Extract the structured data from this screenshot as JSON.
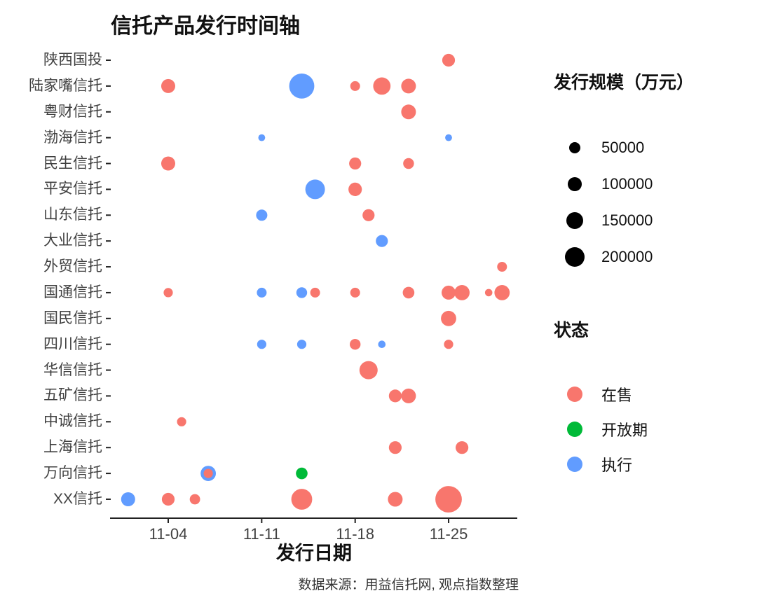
{
  "chart_data": {
    "type": "scatter",
    "title": "信托产品发行时间轴",
    "xlabel": "发行日期",
    "ylabel": "",
    "caption": "数据来源：用益信托网, 观点指数整理",
    "grid": false,
    "legend_position": "right",
    "x_ticks": [
      "11-04",
      "11-11",
      "11-18",
      "11-25"
    ],
    "x_range": [
      "11-01",
      "11-30"
    ],
    "companies": [
      "陕西国投",
      "陆家嘴信托",
      "粤财信托",
      "渤海信托",
      "民生信托",
      "平安信托",
      "山东信托",
      "大业信托",
      "外贸信托",
      "国通信托",
      "国民信托",
      "四川信托",
      "华信信托",
      "五矿信托",
      "中诚信托",
      "上海信托",
      "万向信托",
      "XX信托"
    ],
    "size_legend": {
      "title": "发行规模（万元）",
      "breaks": [
        50000,
        100000,
        150000,
        200000
      ],
      "dot_color": "#000000"
    },
    "status_legend": {
      "title": "状态",
      "items": [
        {
          "label": "在售",
          "color": "#F8766D"
        },
        {
          "label": "开放期",
          "color": "#00BA38"
        },
        {
          "label": "执行",
          "color": "#619CFF"
        }
      ]
    },
    "points": [
      {
        "company": "陕西国投",
        "date": "11-25",
        "value": 70000,
        "status": "在售"
      },
      {
        "company": "陆家嘴信托",
        "date": "11-04",
        "value": 90000,
        "status": "在售"
      },
      {
        "company": "陆家嘴信托",
        "date": "11-14",
        "value": 350000,
        "status": "执行"
      },
      {
        "company": "陆家嘴信托",
        "date": "11-18",
        "value": 35000,
        "status": "在售"
      },
      {
        "company": "陆家嘴信托",
        "date": "11-20",
        "value": 150000,
        "status": "在售"
      },
      {
        "company": "陆家嘴信托",
        "date": "11-22",
        "value": 100000,
        "status": "在售"
      },
      {
        "company": "粤财信托",
        "date": "11-22",
        "value": 100000,
        "status": "在售"
      },
      {
        "company": "渤海信托",
        "date": "11-11",
        "value": 12000,
        "status": "执行"
      },
      {
        "company": "渤海信托",
        "date": "11-25",
        "value": 12000,
        "status": "执行"
      },
      {
        "company": "民生信托",
        "date": "11-04",
        "value": 90000,
        "status": "在售"
      },
      {
        "company": "民生信托",
        "date": "11-18",
        "value": 60000,
        "status": "在售"
      },
      {
        "company": "民生信托",
        "date": "11-22",
        "value": 45000,
        "status": "在售"
      },
      {
        "company": "平安信托",
        "date": "11-15",
        "value": 200000,
        "status": "执行"
      },
      {
        "company": "平安信托",
        "date": "11-18",
        "value": 80000,
        "status": "在售"
      },
      {
        "company": "山东信托",
        "date": "11-11",
        "value": 50000,
        "status": "执行"
      },
      {
        "company": "山东信托",
        "date": "11-19",
        "value": 60000,
        "status": "在售"
      },
      {
        "company": "大业信托",
        "date": "11-20",
        "value": 60000,
        "status": "执行"
      },
      {
        "company": "外贸信托",
        "date": "11-29",
        "value": 35000,
        "status": "在售"
      },
      {
        "company": "国通信托",
        "date": "11-04",
        "value": 30000,
        "status": "在售"
      },
      {
        "company": "国通信托",
        "date": "11-11",
        "value": 35000,
        "status": "执行"
      },
      {
        "company": "国通信托",
        "date": "11-14",
        "value": 45000,
        "status": "执行"
      },
      {
        "company": "国通信托",
        "date": "11-15",
        "value": 35000,
        "status": "在售"
      },
      {
        "company": "国通信托",
        "date": "11-18",
        "value": 35000,
        "status": "在售"
      },
      {
        "company": "国通信托",
        "date": "11-22",
        "value": 55000,
        "status": "在售"
      },
      {
        "company": "国通信托",
        "date": "11-25",
        "value": 90000,
        "status": "在售"
      },
      {
        "company": "国通信托",
        "date": "11-26",
        "value": 110000,
        "status": "在售"
      },
      {
        "company": "国通信托",
        "date": "11-28",
        "value": 15000,
        "status": "在售"
      },
      {
        "company": "国通信托",
        "date": "11-29",
        "value": 110000,
        "status": "在售"
      },
      {
        "company": "国民信托",
        "date": "11-25",
        "value": 110000,
        "status": "在售"
      },
      {
        "company": "四川信托",
        "date": "11-11",
        "value": 30000,
        "status": "执行"
      },
      {
        "company": "四川信托",
        "date": "11-14",
        "value": 30000,
        "status": "执行"
      },
      {
        "company": "四川信托",
        "date": "11-18",
        "value": 45000,
        "status": "在售"
      },
      {
        "company": "四川信托",
        "date": "11-20",
        "value": 15000,
        "status": "执行"
      },
      {
        "company": "四川信托",
        "date": "11-25",
        "value": 30000,
        "status": "在售"
      },
      {
        "company": "华信信托",
        "date": "11-19",
        "value": 170000,
        "status": "在售"
      },
      {
        "company": "五矿信托",
        "date": "11-21",
        "value": 70000,
        "status": "在售"
      },
      {
        "company": "五矿信托",
        "date": "11-22",
        "value": 100000,
        "status": "在售"
      },
      {
        "company": "中诚信托",
        "date": "11-05",
        "value": 30000,
        "status": "在售"
      },
      {
        "company": "上海信托",
        "date": "11-21",
        "value": 70000,
        "status": "在售"
      },
      {
        "company": "上海信托",
        "date": "11-26",
        "value": 70000,
        "status": "在售"
      },
      {
        "company": "万向信托",
        "date": "11-07",
        "value": 110000,
        "status": "执行"
      },
      {
        "company": "万向信托",
        "date": "11-07",
        "value": 30000,
        "status": "在售"
      },
      {
        "company": "万向信托",
        "date": "11-14",
        "value": 55000,
        "status": "开放期"
      },
      {
        "company": "XX信托",
        "date": "11-01",
        "value": 90000,
        "status": "执行"
      },
      {
        "company": "XX信托",
        "date": "11-04",
        "value": 70000,
        "status": "在售"
      },
      {
        "company": "XX信托",
        "date": "11-06",
        "value": 40000,
        "status": "在售"
      },
      {
        "company": "XX信托",
        "date": "11-14",
        "value": 230000,
        "status": "在售"
      },
      {
        "company": "XX信托",
        "date": "11-21",
        "value": 100000,
        "status": "在售"
      },
      {
        "company": "XX信托",
        "date": "11-25",
        "value": 400000,
        "status": "在售"
      }
    ]
  }
}
